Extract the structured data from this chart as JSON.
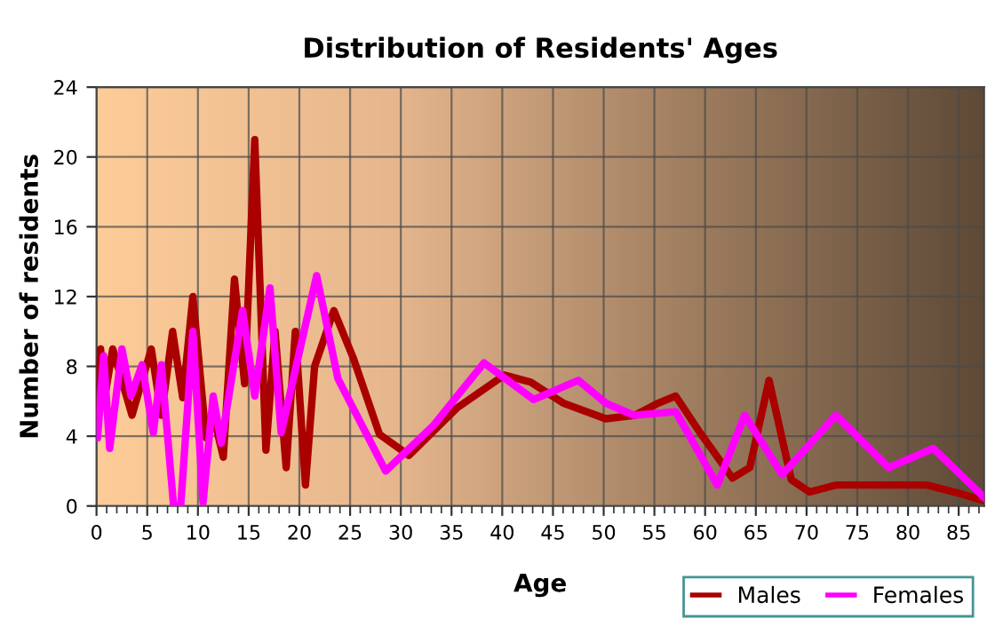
{
  "chart_data": {
    "type": "line",
    "title": "Distribution of Residents' Ages",
    "xlabel": "Age",
    "ylabel": "Number of residents",
    "xlim": [
      0,
      87.5
    ],
    "xticks": [
      0,
      5,
      10,
      15,
      20,
      25,
      30,
      35,
      40,
      45,
      50,
      55,
      60,
      65,
      70,
      75,
      80,
      85
    ],
    "ylim": [
      0,
      24
    ],
    "yticks": [
      0,
      4,
      8,
      12,
      16,
      20,
      24
    ],
    "grid": true,
    "legend": "bottom right",
    "line_style": "solid",
    "marker": "none",
    "series": [
      {
        "name": "Males",
        "color": "#aa0000",
        "x": [
          0,
          0.4,
          0.8,
          1.6,
          3.5,
          5.4,
          6.4,
          7.5,
          8.5,
          9.5,
          10.8,
          11.6,
          12.5,
          13.6,
          14.6,
          15.6,
          16.7,
          17.6,
          18.7,
          19.6,
          20.6,
          21.5,
          23.4,
          25.3,
          27.9,
          30.8,
          35.5,
          40.2,
          42.8,
          46,
          50.2,
          53.1,
          55.4,
          57.1,
          59.5,
          62.7,
          64.4,
          66.3,
          68.5,
          70.3,
          72.9,
          79.3,
          81.9,
          85.2,
          87.5
        ],
        "values": [
          5,
          9,
          6.2,
          9,
          5.2,
          9,
          5.2,
          10,
          6.2,
          12,
          3.9,
          5,
          2.8,
          13,
          7,
          21,
          3.2,
          10,
          2.2,
          10,
          1.2,
          8,
          11.2,
          8.5,
          4.1,
          2.9,
          5.6,
          7.5,
          7.1,
          5.9,
          5,
          5.2,
          5.9,
          6.3,
          4.2,
          1.6,
          2.2,
          7.2,
          1.5,
          0.8,
          1.2,
          1.2,
          1.2,
          0.7,
          0.3
        ]
      },
      {
        "name": "Females",
        "color": "#ff00ff",
        "x": [
          0,
          0.1,
          0.7,
          1.3,
          2.5,
          3.4,
          4.5,
          5.6,
          6.4,
          7.6,
          8.3,
          9.5,
          10.5,
          11.5,
          12.3,
          14.4,
          15.6,
          17.1,
          18.2,
          21.7,
          23.8,
          28.5,
          33.2,
          38.2,
          43.1,
          47.5,
          50.2,
          53,
          57.1,
          61.2,
          63.9,
          67.6,
          72.9,
          78.1,
          82.5,
          87.5
        ],
        "values": [
          5,
          3.9,
          8.6,
          3.3,
          9,
          6.3,
          8.1,
          4.2,
          8.1,
          0,
          0,
          10,
          0.2,
          6.3,
          3.6,
          11.2,
          6.3,
          12.5,
          4.2,
          13.2,
          7.3,
          2,
          4.6,
          8.2,
          6.1,
          7.2,
          5.9,
          5.2,
          5.4,
          1.2,
          5.2,
          1.8,
          5.2,
          2.2,
          3.3,
          0.5
        ]
      }
    ]
  }
}
